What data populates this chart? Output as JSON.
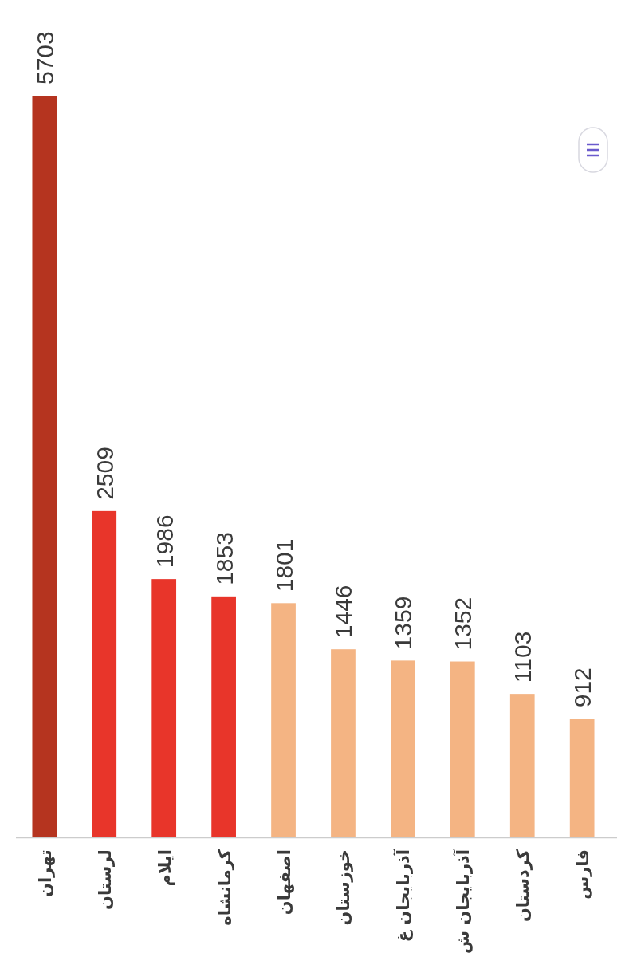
{
  "chart_data": {
    "type": "bar",
    "categories": [
      "تهران",
      "لرستان",
      "ایلام",
      "کرمانشاه",
      "اصفهان",
      "خوزستان",
      "آذربایجان غ",
      "آذربایجان ش",
      "کردستان",
      "فارس"
    ],
    "values": [
      5703,
      2509,
      1986,
      1853,
      1801,
      1446,
      1359,
      1352,
      1103,
      912
    ],
    "colors": [
      "#b5341f",
      "#e8352a",
      "#e8352a",
      "#e8352a",
      "#f4b483",
      "#f4b483",
      "#f4b483",
      "#f4b483",
      "#f4b483",
      "#f4b483"
    ],
    "data_labels": true
  }
}
